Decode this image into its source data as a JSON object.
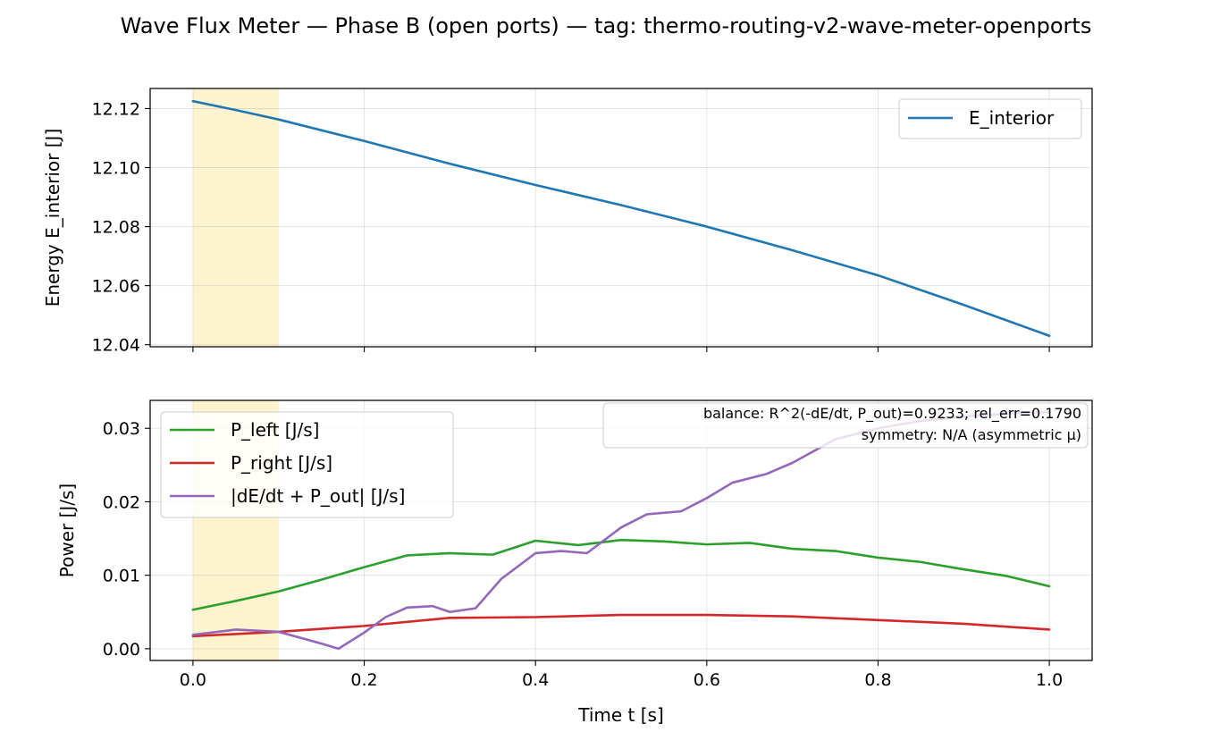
{
  "title": "Wave Flux Meter — Phase B (open ports) — tag: thermo-routing-v2-wave-meter-openports",
  "chart_data": [
    {
      "type": "line",
      "name": "energy-panel",
      "ylabel": "Energy E_interior [J]",
      "xlabel": "",
      "xlim": [
        -0.05,
        1.05
      ],
      "ylim": [
        12.0393,
        12.1268
      ],
      "x_ticks": [
        0.0,
        0.2,
        0.4,
        0.6,
        0.8,
        1.0
      ],
      "x_tick_labels_visible": false,
      "y_ticks": [
        12.04,
        12.06,
        12.08,
        12.1,
        12.12
      ],
      "y_tick_labels": [
        "12.04",
        "12.06",
        "12.08",
        "12.10",
        "12.12"
      ],
      "grid": true,
      "shaded_region": {
        "x_start": 0.0,
        "x_end": 0.1,
        "color": "#fdf3cf"
      },
      "legend_position": "top-right",
      "series": [
        {
          "name": "E_interior",
          "color": "#1f77b4",
          "x": [
            0.0,
            0.05,
            0.1,
            0.2,
            0.3,
            0.4,
            0.5,
            0.6,
            0.7,
            0.8,
            0.9,
            1.0
          ],
          "y": [
            12.1225,
            12.1195,
            12.1163,
            12.109,
            12.1013,
            12.0941,
            12.0873,
            12.08,
            12.072,
            12.0635,
            12.0535,
            12.043
          ]
        }
      ]
    },
    {
      "type": "line",
      "name": "power-panel",
      "ylabel": "Power [J/s]",
      "xlabel": "Time t [s]",
      "xlim": [
        -0.05,
        1.05
      ],
      "ylim": [
        -0.0016,
        0.0338
      ],
      "x_ticks": [
        0.0,
        0.2,
        0.4,
        0.6,
        0.8,
        1.0
      ],
      "x_tick_labels": [
        "0.0",
        "0.2",
        "0.4",
        "0.6",
        "0.8",
        "1.0"
      ],
      "y_ticks": [
        0.0,
        0.01,
        0.02,
        0.03
      ],
      "y_tick_labels": [
        "0.00",
        "0.01",
        "0.02",
        "0.03"
      ],
      "grid": true,
      "shaded_region": {
        "x_start": 0.0,
        "x_end": 0.1,
        "color": "#fdf3cf"
      },
      "legend_position": "top-left",
      "annotation": [
        "balance: R^2(-dE/dt, P_out)=0.9233; rel_err=0.1790",
        "symmetry: N/A (asymmetric μ)"
      ],
      "annotation_position": "top-right",
      "series": [
        {
          "name": "P_left [J/s]",
          "color": "#2ca02c",
          "x": [
            0.0,
            0.05,
            0.1,
            0.15,
            0.2,
            0.25,
            0.3,
            0.35,
            0.4,
            0.45,
            0.5,
            0.55,
            0.6,
            0.65,
            0.7,
            0.75,
            0.8,
            0.85,
            0.9,
            0.95,
            1.0
          ],
          "y": [
            0.0053,
            0.0065,
            0.0078,
            0.0094,
            0.0111,
            0.0127,
            0.013,
            0.0128,
            0.0147,
            0.0141,
            0.0148,
            0.0146,
            0.0142,
            0.0144,
            0.0136,
            0.0133,
            0.0124,
            0.0118,
            0.0108,
            0.0099,
            0.0085
          ]
        },
        {
          "name": "P_right [J/s]",
          "color": "#d62728",
          "x": [
            0.0,
            0.1,
            0.2,
            0.3,
            0.4,
            0.5,
            0.6,
            0.7,
            0.8,
            0.9,
            1.0
          ],
          "y": [
            0.0017,
            0.0023,
            0.0031,
            0.0042,
            0.0043,
            0.0046,
            0.0046,
            0.0044,
            0.0039,
            0.0034,
            0.0026
          ]
        },
        {
          "name": "|dE/dt + P_out| [J/s]",
          "color": "#9467bd",
          "x": [
            0.0,
            0.05,
            0.1,
            0.15,
            0.17,
            0.2,
            0.225,
            0.25,
            0.28,
            0.3,
            0.33,
            0.36,
            0.4,
            0.43,
            0.46,
            0.5,
            0.53,
            0.57,
            0.6,
            0.63,
            0.67,
            0.7,
            0.75,
            0.8,
            0.85,
            0.9,
            0.95,
            1.0
          ],
          "y": [
            0.0019,
            0.0026,
            0.0023,
            0.0007,
            0.0,
            0.0022,
            0.0043,
            0.0056,
            0.0058,
            0.005,
            0.0055,
            0.0095,
            0.013,
            0.0133,
            0.013,
            0.0165,
            0.0183,
            0.0187,
            0.0205,
            0.0226,
            0.0238,
            0.0253,
            0.0285,
            0.03,
            0.031,
            0.0316,
            0.032,
            0.0322
          ]
        }
      ]
    }
  ]
}
